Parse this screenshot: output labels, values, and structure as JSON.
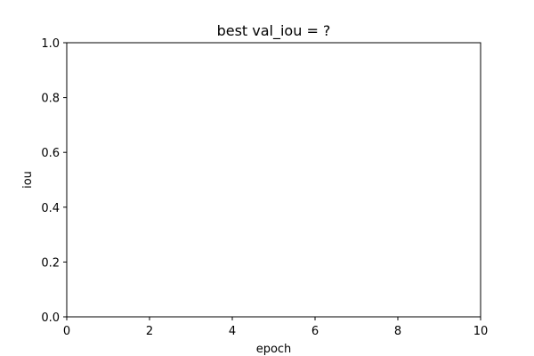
{
  "chart_data": {
    "type": "line",
    "title": "best val_iou = ?",
    "xlabel": "epoch",
    "ylabel": "iou",
    "xlim": [
      0,
      10
    ],
    "ylim": [
      0,
      1
    ],
    "x_ticks": [
      0,
      2,
      4,
      6,
      8,
      10
    ],
    "x_tick_labels": [
      "0",
      "2",
      "4",
      "6",
      "8",
      "10"
    ],
    "y_ticks": [
      0,
      0.2,
      0.4,
      0.6,
      0.8,
      1.0
    ],
    "y_tick_labels": [
      "0.0",
      "0.2",
      "0.4",
      "0.6",
      "0.8",
      "1.0"
    ],
    "series": [],
    "grid": false,
    "legend": "none"
  },
  "colors": {
    "background": "#ffffff",
    "axes": "#000000",
    "text": "#000000"
  }
}
